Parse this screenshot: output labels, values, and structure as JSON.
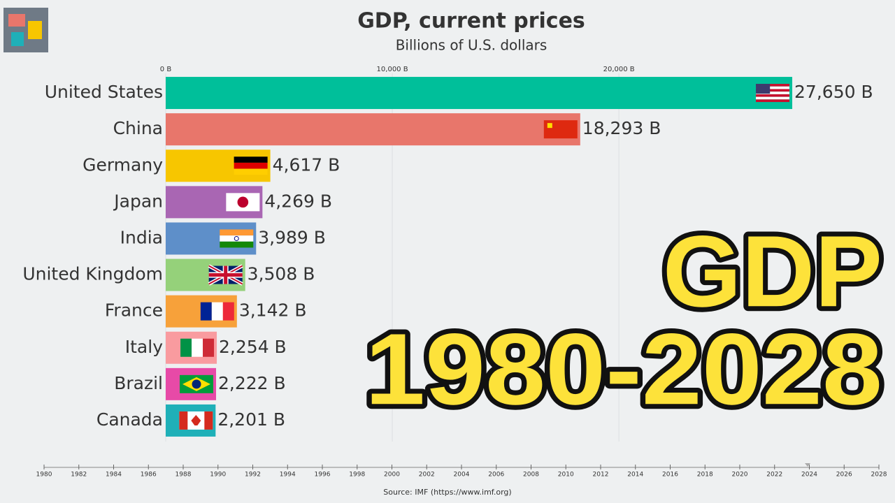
{
  "chart_data": {
    "type": "bar",
    "title": "GDP, current prices",
    "subtitle": "Billions of U.S. dollars",
    "categories": [
      "United States",
      "China",
      "Germany",
      "Japan",
      "India",
      "United Kingdom",
      "France",
      "Italy",
      "Brazil",
      "Canada"
    ],
    "values": [
      27650,
      18293,
      4617,
      4269,
      3989,
      3508,
      3142,
      2254,
      2222,
      2201
    ],
    "value_labels": [
      "27,650 B",
      "18,293 B",
      "4,617 B",
      "4,269 B",
      "3,989 B",
      "3,508 B",
      "3,142 B",
      "2,254 B",
      "2,222 B",
      "2,201 B"
    ],
    "colors": [
      "#00bf9a",
      "#e8766b",
      "#f7c600",
      "#a966b3",
      "#5e8fc9",
      "#95d17a",
      "#f7a13a",
      "#f99b9f",
      "#e74aa7",
      "#1fb0b8"
    ],
    "xlim": [
      0,
      32000
    ],
    "xticks": [
      {
        "value": 0,
        "label": "0 B"
      },
      {
        "value": 10000,
        "label": "10,000 B"
      },
      {
        "value": 20000,
        "label": "20,000 B"
      }
    ],
    "grid": true,
    "timeline": {
      "xlim": [
        1980,
        2028
      ],
      "xticks": [
        1980,
        1982,
        1984,
        1986,
        1988,
        1990,
        1992,
        1994,
        1996,
        1998,
        2000,
        2002,
        2004,
        2006,
        2008,
        2010,
        2012,
        2014,
        2016,
        2018,
        2020,
        2022,
        2024,
        2026,
        2028
      ],
      "current": 2023.9
    },
    "source": "Source: IMF (https://www.imf.org)",
    "overlay": [
      "GDP",
      "1980-2028"
    ]
  }
}
